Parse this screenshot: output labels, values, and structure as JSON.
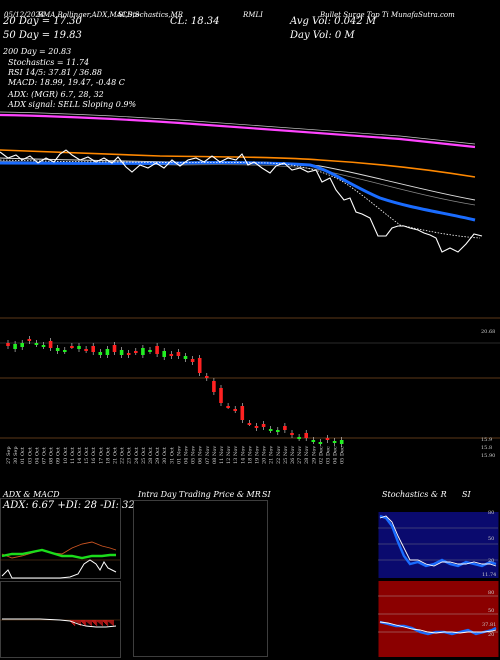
{
  "header": {
    "top_strip": "MunafaSutra.com",
    "date_stamp": "05/12/2024",
    "legend_line": "EMA,Bollinger,ADX,MACD,S",
    "legend_line2": "SI,Stochastics,MR",
    "ticker": "RMLI",
    "ma20_line": "20 Day = 17.30",
    "ma50_line": "50 Day = 19.83",
    "ma200_line": "200 Day = 20.83",
    "stoch_line": "Stochastics = 11.74",
    "rsi_line": "RSI 14/5: 37.81 / 36.88",
    "macd_line": "MACD: 18.99, 19.47, -0.48 C",
    "close_line": "CL: 18.34",
    "avg_vol_line": "Avg Vol: 0.042 M",
    "day_vol_line": "Day Vol: 0 M",
    "adx_line": "ADX:                    (MGR) 6.7, 28, 32",
    "signal_line": "ADX signal: SELL Sloping 0.9%",
    "right_top_text": "Bullet Surge Top Ti MunafaSutra.com"
  },
  "price_labels": {
    "right_level": "20.68",
    "low1": "15.9",
    "low2": "15.8",
    "low3": "15.90"
  },
  "dates": [
    "27 Sep",
    "30 Sep",
    "01 Oct",
    "03 Oct",
    "04 Oct",
    "07 Oct",
    "08 Oct",
    "09 Oct",
    "10 Oct",
    "11 Oct",
    "14 Oct",
    "15 Oct",
    "16 Oct",
    "17 Oct",
    "18 Oct",
    "21 Oct",
    "22 Oct",
    "23 Oct",
    "24 Oct",
    "25 Oct",
    "28 Oct",
    "29 Oct",
    "30 Oct",
    "31 Oct",
    "01 Nov",
    "04 Nov",
    "05 Nov",
    "06 Nov",
    "07 Nov",
    "08 Nov",
    "11 Nov",
    "12 Nov",
    "13 Nov",
    "14 Nov",
    "18 Nov",
    "19 Nov",
    "20 Nov",
    "21 Nov",
    "22 Nov",
    "25 Nov",
    "26 Nov",
    "27 Nov",
    "28 Nov",
    "29 Nov",
    "02 Dec",
    "03 Dec",
    "04 Dec",
    "05 Dec"
  ],
  "panels": {
    "adx": {
      "title": "ADX  & MACD",
      "values": "ADX: 6.67  +DI: 28  -DI: 32"
    },
    "intra": {
      "title": "Intra  Day Trading Price  & MR",
      "si": "SI"
    },
    "stoch": {
      "title": "Stochastics & R",
      "si": "SI",
      "ticks_top": [
        "80",
        "50",
        "20"
      ],
      "ticks_bot": [
        "80",
        "50",
        "20"
      ],
      "value_label": "11.74",
      "rsi_label": "37.81"
    }
  },
  "colors": {
    "magenta": "#ff44ff",
    "orange": "#ff8800",
    "blue": "#1a6cff",
    "panel_bg_red": "#8b0000",
    "panel_bg_blue": "#0a0a6e",
    "grid_brown": "#7a4a20"
  }
}
